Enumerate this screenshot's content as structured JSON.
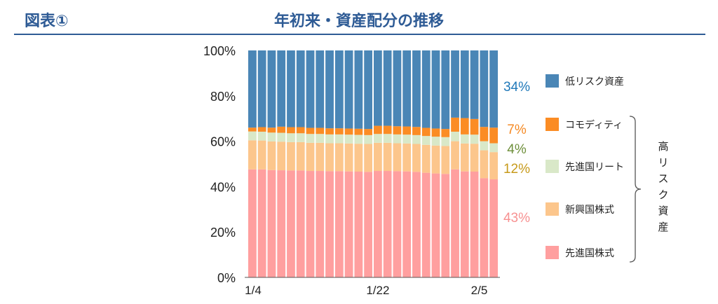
{
  "header": {
    "label": "図表①",
    "title": "年初来・資産配分の推移"
  },
  "chart_data": {
    "type": "stacked_bar_100",
    "title": "年初来・資産配分の推移",
    "ylim": [
      0,
      100
    ],
    "yticks": [
      "0%",
      "20%",
      "40%",
      "60%",
      "80%",
      "100%"
    ],
    "xtick_labels": [
      {
        "index": 0,
        "label": "1/4"
      },
      {
        "index": 13,
        "label": "1/22"
      },
      {
        "index": 23.5,
        "label": "2/5"
      }
    ],
    "series": [
      {
        "name": "先進国株式",
        "color": "#ff9f9f",
        "values": [
          47.6,
          47.6,
          47.3,
          47.2,
          47.1,
          47.1,
          46.9,
          46.9,
          46.8,
          46.8,
          46.7,
          46.6,
          46.5,
          46.9,
          46.9,
          46.8,
          46.7,
          46.5,
          46.1,
          45.8,
          45.6,
          47.6,
          46.7,
          46.6,
          43.7,
          43.2
        ]
      },
      {
        "name": "新興国株式",
        "color": "#fcc68c",
        "values": [
          12.8,
          12.7,
          12.6,
          12.6,
          12.5,
          12.5,
          12.4,
          12.4,
          12.3,
          12.3,
          12.3,
          12.3,
          12.3,
          12.4,
          12.4,
          12.3,
          12.3,
          12.3,
          12.3,
          12.3,
          12.3,
          12.4,
          12.3,
          12.3,
          12.3,
          12.0
        ]
      },
      {
        "name": "先進国リート",
        "color": "#d9e8c8",
        "values": [
          3.9,
          3.9,
          3.9,
          3.9,
          3.9,
          3.9,
          3.9,
          3.9,
          3.9,
          3.9,
          3.9,
          3.9,
          3.9,
          3.9,
          3.9,
          3.9,
          3.9,
          3.9,
          3.9,
          3.9,
          3.9,
          4.2,
          4.0,
          4.0,
          4.0,
          3.9
        ]
      },
      {
        "name": "コモディティ",
        "color": "#fb8c24",
        "values": [
          1.7,
          2.0,
          2.2,
          2.7,
          2.7,
          2.7,
          2.7,
          2.7,
          2.7,
          2.7,
          2.7,
          2.7,
          2.7,
          3.6,
          3.6,
          3.6,
          3.6,
          3.6,
          3.6,
          3.6,
          3.6,
          6.2,
          7.2,
          6.9,
          6.3,
          6.9
        ]
      },
      {
        "name": "低リスク資産",
        "color": "#4a86b6",
        "values": [
          34.0,
          33.8,
          34.0,
          33.6,
          33.8,
          33.8,
          34.1,
          34.1,
          34.3,
          34.3,
          34.4,
          34.5,
          34.6,
          33.2,
          33.2,
          33.4,
          33.5,
          33.7,
          34.1,
          34.4,
          34.6,
          29.6,
          29.8,
          30.2,
          33.7,
          34.0
        ]
      }
    ],
    "end_labels": [
      {
        "series": "低リスク資産",
        "text": "34%",
        "color": "#1f78b9"
      },
      {
        "series": "コモディティ",
        "text": "7%",
        "color": "#f58a25"
      },
      {
        "series": "先進国リート",
        "text": "4%",
        "color": "#6e8f3b"
      },
      {
        "series": "新興国株式",
        "text": "12%",
        "color": "#c79a1a"
      },
      {
        "series": "先進国株式",
        "text": "43%",
        "color": "#f79191"
      }
    ],
    "legend_order": [
      "低リスク資産",
      "コモディティ",
      "先進国リート",
      "新興国株式",
      "先進国株式"
    ],
    "bracket_label": "高リスク資産",
    "bracket_series": [
      "コモディティ",
      "先進国リート",
      "新興国株式",
      "先進国株式"
    ]
  }
}
